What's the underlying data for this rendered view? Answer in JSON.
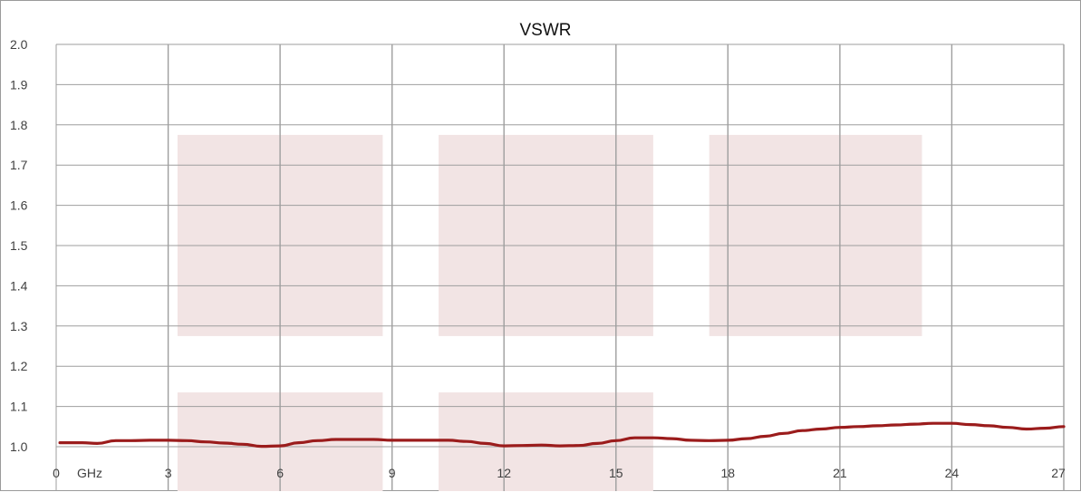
{
  "chart_data": {
    "type": "line",
    "title": "VSWR",
    "xlabel": "",
    "ylabel": "",
    "x_unit_label": "GHz",
    "xlim": [
      0,
      27
    ],
    "ylim": [
      1.0,
      2.0
    ],
    "x_ticks": [
      0,
      3,
      6,
      9,
      12,
      15,
      18,
      21,
      24,
      27
    ],
    "x_tick_labels": [
      "0",
      "3",
      "6",
      "9",
      "12",
      "15",
      "18",
      "21",
      "24",
      "27"
    ],
    "y_ticks": [
      1.0,
      1.1,
      1.2,
      1.3,
      1.4,
      1.5,
      1.6,
      1.7,
      1.8,
      1.9,
      2.0
    ],
    "y_tick_labels": [
      "1.0",
      "1.1",
      "1.2",
      "1.3",
      "1.4",
      "1.5",
      "1.6",
      "1.7",
      "1.8",
      "1.9",
      "2.0"
    ],
    "grid": true,
    "legend": "none",
    "series": [
      {
        "color": "#9b1c1c",
        "x": [
          0.1,
          0.7,
          1.1,
          1.6,
          2.0,
          2.5,
          3.0,
          3.5,
          4.0,
          4.5,
          5.0,
          5.5,
          6.0,
          6.5,
          7.0,
          7.5,
          8.0,
          8.5,
          9.0,
          9.5,
          10.0,
          10.5,
          11.0,
          11.5,
          12.0,
          12.5,
          13.0,
          13.5,
          14.0,
          14.5,
          15.0,
          15.5,
          16.0,
          16.5,
          17.0,
          17.5,
          18.0,
          18.5,
          19.0,
          19.5,
          20.0,
          20.5,
          21.0,
          21.5,
          22.0,
          22.5,
          23.0,
          23.5,
          24.0,
          24.5,
          25.0,
          25.5,
          26.0,
          26.5,
          27.0
        ],
        "y": [
          1.01,
          1.01,
          1.008,
          1.015,
          1.015,
          1.016,
          1.016,
          1.015,
          1.012,
          1.009,
          1.006,
          1.001,
          1.002,
          1.01,
          1.015,
          1.018,
          1.018,
          1.018,
          1.016,
          1.016,
          1.016,
          1.016,
          1.013,
          1.008,
          1.002,
          1.003,
          1.004,
          1.002,
          1.003,
          1.008,
          1.015,
          1.022,
          1.022,
          1.02,
          1.016,
          1.015,
          1.016,
          1.02,
          1.026,
          1.033,
          1.04,
          1.044,
          1.048,
          1.05,
          1.052,
          1.054,
          1.056,
          1.058,
          1.058,
          1.055,
          1.052,
          1.048,
          1.044,
          1.046,
          1.05
        ]
      }
    ],
    "shaded_regions": [
      {
        "x": [
          3.25,
          8.75
        ],
        "y": [
          1.275,
          1.775
        ],
        "color": "#f2e4e4"
      },
      {
        "x": [
          10.25,
          16.0
        ],
        "y": [
          1.275,
          1.775
        ],
        "color": "#f2e4e4"
      },
      {
        "x": [
          17.5,
          23.2
        ],
        "y": [
          1.275,
          1.775
        ],
        "color": "#f2e4e4"
      },
      {
        "x": [
          3.25,
          8.75
        ],
        "y": [
          0.875,
          1.135
        ],
        "color": "#f2e4e4"
      },
      {
        "x": [
          10.25,
          16.0
        ],
        "y": [
          0.875,
          1.135
        ],
        "color": "#f2e4e4"
      }
    ],
    "colors": {
      "grid": "#9e9e9e",
      "line": "#9b1c1c",
      "shade": "#f2e4e4"
    }
  }
}
